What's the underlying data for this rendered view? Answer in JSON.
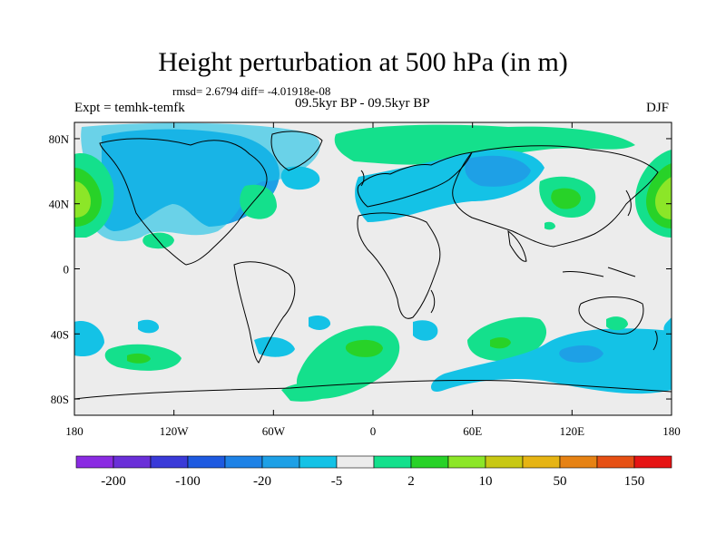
{
  "title": "Height perturbation at 500 hPa (in m)",
  "stats": "rmsd= 2.6794 diff= -4.01918e-08",
  "expt": "Expt = temhk-temfk",
  "period": "09.5kyr BP - 09.5kyr BP",
  "season": "DJF",
  "axes": {
    "x_ticks": [
      {
        "value": -180,
        "label": "180"
      },
      {
        "value": -120,
        "label": "120W"
      },
      {
        "value": -60,
        "label": "60W"
      },
      {
        "value": 0,
        "label": "0"
      },
      {
        "value": 60,
        "label": "60E"
      },
      {
        "value": 120,
        "label": "120E"
      },
      {
        "value": 180,
        "label": "180"
      }
    ],
    "y_ticks": [
      {
        "value": 80,
        "label": "80N"
      },
      {
        "value": 40,
        "label": "40N"
      },
      {
        "value": 0,
        "label": "0"
      },
      {
        "value": -40,
        "label": "40S"
      },
      {
        "value": -80,
        "label": "80S"
      }
    ],
    "lon_range": [
      -180,
      180
    ],
    "lat_range": [
      -90,
      90
    ]
  },
  "colorbar": {
    "colors": [
      "#8a2be2",
      "#6a2fd8",
      "#3a3ad8",
      "#1e5ae0",
      "#1e82e6",
      "#1ea0e6",
      "#14c2e6",
      "#ececec",
      "#14e08c",
      "#28d228",
      "#8ce628",
      "#c8c814",
      "#e6b414",
      "#e68214",
      "#e65014",
      "#e61414"
    ],
    "labels": [
      "-200",
      "-100",
      "-20",
      "-5",
      "2",
      "10",
      "50",
      "150"
    ]
  },
  "colors": {
    "neutral": "#ececec",
    "light_blue": "#14c2e6",
    "mid_blue": "#1ea0e6",
    "light_green": "#14e08c",
    "green": "#28d228",
    "yellow_green": "#8ce628",
    "yellow": "#c8c814"
  }
}
